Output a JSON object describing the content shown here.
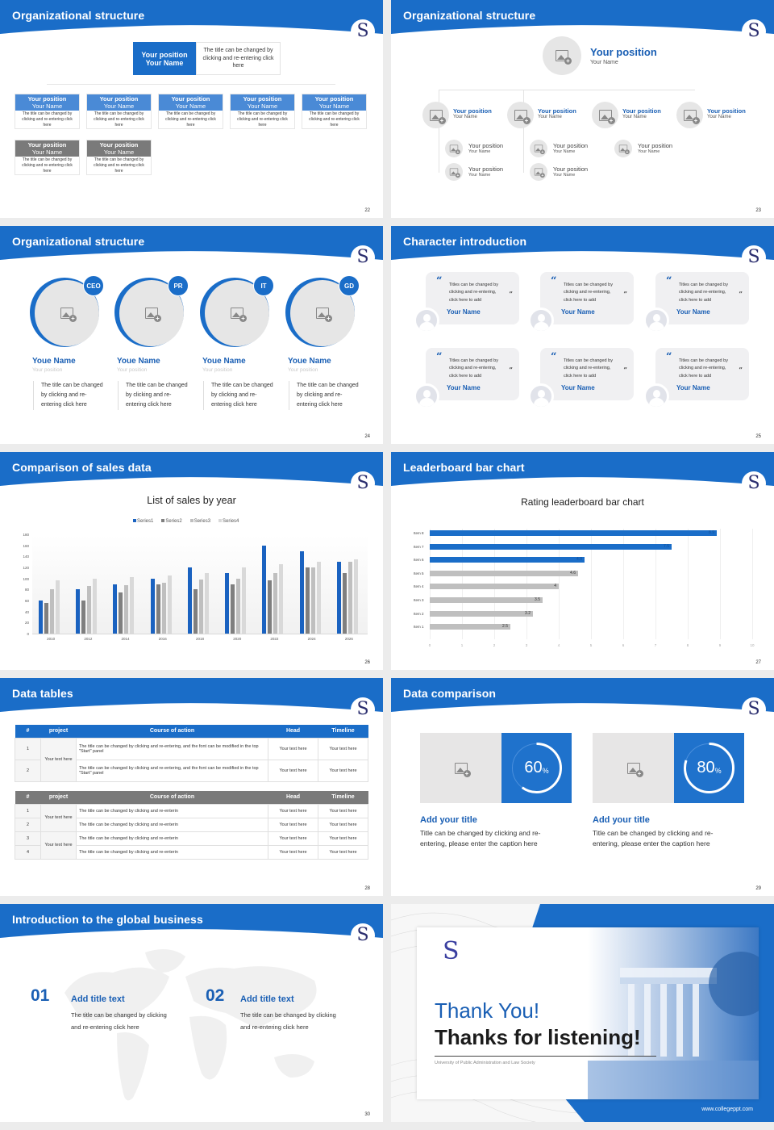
{
  "colors": {
    "brand_blue": "#1a6dc8",
    "accent_dark_blue": "#1a5fb4",
    "gray_bar": "#bfbfbf",
    "placeholder_gray": "#e6e6e6"
  },
  "logo_glyph": "S",
  "slides": [
    {
      "number": "22",
      "title": "Organizational structure",
      "top": {
        "position": "Your position",
        "name": "Your Name",
        "desc": "The title can be changed by clicking and re-entering click here"
      },
      "row1": [
        {
          "position": "Your position",
          "name": "Your Name",
          "desc": "The title can be changed by clicking and re-entering click here"
        },
        {
          "position": "Your position",
          "name": "Your Name",
          "desc": "The title can be changed by clicking and re-entering click here"
        },
        {
          "position": "Your position",
          "name": "Your Name",
          "desc": "The title can be changed by clicking and re-entering click here"
        },
        {
          "position": "Your position",
          "name": "Your Name",
          "desc": "The title can be changed by clicking and re-entering click here"
        },
        {
          "position": "Your position",
          "name": "Your Name",
          "desc": "The title can be changed by clicking and re-entering click here"
        }
      ],
      "row2": [
        {
          "position": "Your position",
          "name": "Your Name",
          "desc": "The title can be changed by clicking and re-entering click here"
        },
        {
          "position": "Your position",
          "name": "Your Name",
          "desc": "The title can be changed by clicking and re-entering click here"
        }
      ]
    },
    {
      "number": "23",
      "title": "Organizational structure",
      "top": {
        "position": "Your position",
        "name": "Your Name",
        "icon": "image-placeholder-icon"
      },
      "level2": [
        {
          "position": "Your position",
          "name": "Your Name"
        },
        {
          "position": "Your position",
          "name": "Your Name"
        },
        {
          "position": "Your position",
          "name": "Your Name"
        },
        {
          "position": "Your position",
          "name": "Your Name"
        }
      ],
      "level3": [
        {
          "position": "Your position",
          "name": "Your Name"
        },
        {
          "position": "Your position",
          "name": "Your Name"
        },
        {
          "position": "Your position",
          "name": "Your Name"
        },
        {
          "position": "Your position",
          "name": "Your Name"
        },
        {
          "position": "Your position",
          "name": "Your Name"
        }
      ]
    },
    {
      "number": "24",
      "title": "Organizational structure",
      "members": [
        {
          "badge": "CEO",
          "name": "Youe Name",
          "position": "Your position",
          "desc": "The title can be changed by clicking and re-entering click here"
        },
        {
          "badge": "PR",
          "name": "Youe Name",
          "position": "Your position",
          "desc": "The title can be changed by clicking and re-entering click here"
        },
        {
          "badge": "IT",
          "name": "Youe Name",
          "position": "Your position",
          "desc": "The title can be changed by clicking and re-entering click here"
        },
        {
          "badge": "GD",
          "name": "Youe Name",
          "position": "Your position",
          "desc": "The title can be changed by clicking and re-entering click here"
        }
      ]
    },
    {
      "number": "25",
      "title": "Character introduction",
      "quote_open": "“",
      "quote_close": "”",
      "cards": [
        {
          "text": "Titles can be changed by clicking and re-entering, click here to add",
          "name": "Your Name"
        },
        {
          "text": "Titles can be changed by clicking and re-entering, click here to add",
          "name": "Your Name"
        },
        {
          "text": "Titles can be changed by clicking and re-entering, click here to add",
          "name": "Your Name"
        },
        {
          "text": "Titles can be changed by clicking and re-entering, click here to add",
          "name": "Your Name"
        },
        {
          "text": "Titles can be changed by clicking and re-entering, click here to add",
          "name": "Your Name"
        },
        {
          "text": "Titles can be changed by clicking and re-entering, click here to add",
          "name": "Your Name"
        }
      ]
    },
    {
      "number": "26",
      "title": "Comparison of sales data"
    },
    {
      "number": "27",
      "title": "Leaderboard bar chart"
    },
    {
      "number": "28",
      "title": "Data tables",
      "table1": {
        "headers": [
          "#",
          "project",
          "Course of action",
          "Head",
          "Timeline"
        ],
        "project": "Your text here",
        "rows": [
          {
            "num": "1",
            "action": "The title can be changed by clicking and re-entering, and the font can be modified in the top \"Start\" panel",
            "head": "Your text here",
            "timeline": "Your text here"
          },
          {
            "num": "2",
            "action": "The title can be changed by clicking and re-entering, and the font can be modified in the top \"Start\" panel",
            "head": "Your text here",
            "timeline": "Your text here"
          }
        ]
      },
      "table2": {
        "headers": [
          "#",
          "project",
          "Course of action",
          "Head",
          "Timeline"
        ],
        "projects": [
          "Your text here",
          "Your text here"
        ],
        "rows": [
          {
            "num": "1",
            "action": "The title can be changed by clicking and re-enterin",
            "head": "Your text here",
            "timeline": "Your text here"
          },
          {
            "num": "2",
            "action": "The title can be changed by clicking and re-enterin",
            "head": "Your text here",
            "timeline": "Your text here"
          },
          {
            "num": "3",
            "action": "The title can be changed by clicking and re-enterin",
            "head": "Your text here",
            "timeline": "Your text here"
          },
          {
            "num": "4",
            "action": "The title can be changed by clicking and re-enterin",
            "head": "Your text here",
            "timeline": "Your text here"
          }
        ]
      }
    },
    {
      "number": "29",
      "title": "Data comparison",
      "items": [
        {
          "percent": "60",
          "unit": "%",
          "value": 60,
          "title": "Add your title",
          "desc": "Title can be changed by clicking and re-entering, please enter the caption here"
        },
        {
          "percent": "80",
          "unit": "%",
          "value": 80,
          "title": "Add your title",
          "desc": "Title can be changed by clicking and re-entering, please enter the caption here"
        }
      ]
    },
    {
      "number": "30",
      "title": "Introduction to the global business",
      "items": [
        {
          "num": "01",
          "title": "Add title text",
          "desc": "The title can be changed by clicking and re-entering click here"
        },
        {
          "num": "02",
          "title": "Add title text",
          "desc": "The title can be changed by clicking and re-entering click here"
        }
      ]
    },
    {
      "title_line1": "Thank You!",
      "title_line2": "Thanks for listening!",
      "subtitle": "University of Public Administration and Law Society",
      "url": "www.collegeppt.com"
    }
  ],
  "chart_data": [
    {
      "type": "bar",
      "title": "List of sales by year",
      "categories": [
        "2010",
        "2012",
        "2014",
        "2016",
        "2018",
        "2020",
        "2022",
        "2024",
        "2026"
      ],
      "series": [
        {
          "name": "Series1",
          "color": "#1a62c0",
          "values": [
            60,
            80,
            90,
            100,
            120,
            110,
            160,
            150,
            130
          ]
        },
        {
          "name": "Series2",
          "color": "#7f7f7f",
          "values": [
            55,
            60,
            75,
            90,
            80,
            90,
            96,
            120,
            110
          ]
        },
        {
          "name": "Series3",
          "color": "#bfbfbf",
          "values": [
            80,
            86,
            88,
            92,
            98,
            100,
            110,
            120,
            130
          ]
        },
        {
          "name": "Series4",
          "color": "#d9d9d9",
          "values": [
            96,
            99,
            102,
            105,
            110,
            120,
            126,
            130,
            135
          ]
        }
      ],
      "ylim": [
        0,
        180
      ],
      "yticks": [
        "0",
        "20",
        "40",
        "60",
        "80",
        "100",
        "120",
        "140",
        "160",
        "180"
      ],
      "xlabel": "",
      "ylabel": "",
      "legend_position": "top",
      "grid": false
    },
    {
      "type": "bar",
      "orientation": "horizontal",
      "title": "Rating leaderboard bar chart",
      "categories": [
        "Item 8",
        "Item 7",
        "Item 6",
        "Item 5",
        "Item 4",
        "Item 3",
        "Item 2",
        "Item 1"
      ],
      "values": [
        8.9,
        7.5,
        4.8,
        4.6,
        4,
        3.5,
        3.2,
        2.5
      ],
      "labels": [
        "8.9",
        "7.5",
        "4.8",
        "4.6",
        "4",
        "3.5",
        "3.2",
        "2.5"
      ],
      "highlight_colors": [
        "#1a6dc8",
        "#1a6dc8",
        "#1a6dc8",
        "#bfbfbf",
        "#bfbfbf",
        "#bfbfbf",
        "#bfbfbf",
        "#bfbfbf"
      ],
      "xlim": [
        0,
        10
      ],
      "xticks": [
        "0",
        "1",
        "2",
        "3",
        "4",
        "5",
        "6",
        "7",
        "8",
        "9",
        "10"
      ],
      "grid": true
    }
  ]
}
